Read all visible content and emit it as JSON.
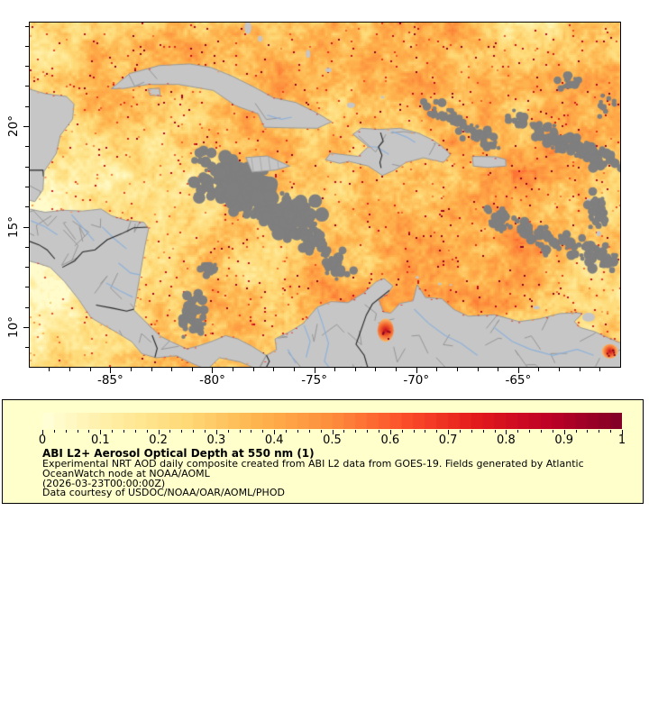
{
  "figure": {
    "type": "satellite-aod-map",
    "region": "Caribbean / Gulf of Mexico / northern South America"
  },
  "map_axes": {
    "extent": {
      "lon_min": -88.95,
      "lon_max": -60.0,
      "lat_min": 8.03,
      "lat_max": 25.16
    },
    "lat_ticks": [
      {
        "label": "20°",
        "value": 20
      },
      {
        "label": "15°",
        "value": 15
      },
      {
        "label": "10°",
        "value": 10
      }
    ],
    "lon_ticks": [
      {
        "label": "-85°",
        "value": -85
      },
      {
        "label": "-80°",
        "value": -80
      },
      {
        "label": "-75°",
        "value": -75
      },
      {
        "label": "-70°",
        "value": -70
      },
      {
        "label": "-65°",
        "value": -65
      }
    ],
    "minor_tick_step_deg": 1
  },
  "colorbar": {
    "min": 0,
    "max": 1,
    "segment_step": 0.02,
    "minor_tick_step": 0.02,
    "ticks": [
      {
        "label": "0",
        "value": 0.0
      },
      {
        "label": "0.1",
        "value": 0.1
      },
      {
        "label": "0.2",
        "value": 0.2
      },
      {
        "label": "0.3",
        "value": 0.3
      },
      {
        "label": "0.4",
        "value": 0.4
      },
      {
        "label": "0.5",
        "value": 0.5
      },
      {
        "label": "0.6",
        "value": 0.6
      },
      {
        "label": "0.7",
        "value": 0.7
      },
      {
        "label": "0.8",
        "value": 0.8
      },
      {
        "label": "0.9",
        "value": 0.9
      },
      {
        "label": "1",
        "value": 1.0
      }
    ],
    "colormap_stops": [
      "#ffffd9",
      "#ffeda0",
      "#fed976",
      "#feb24c",
      "#fd8d3c",
      "#fc4e2a",
      "#e31a1c",
      "#bd0026",
      "#800026"
    ]
  },
  "legend": {
    "background": "#ffffcc",
    "title": "ABI L2+ Aerosol Optical Depth at 550 nm (1)",
    "lines": [
      "Experimental NRT AOD daily composite created from ABI L2 data from GOES-19. Fields generated by Atlantic",
      "OceanWatch node at NOAA/AOML",
      "(2026-03-23T00:00:00Z)",
      "Data courtesy of USDOC/NOAA/OAR/AOML/PHOD"
    ]
  },
  "map_palette": {
    "land": "#c6c6c6",
    "missing_data": "#7f7f7f",
    "admin_boundary": "#969696",
    "country_border": "#252525",
    "river": "#8fb2da",
    "frame": "#000000"
  }
}
